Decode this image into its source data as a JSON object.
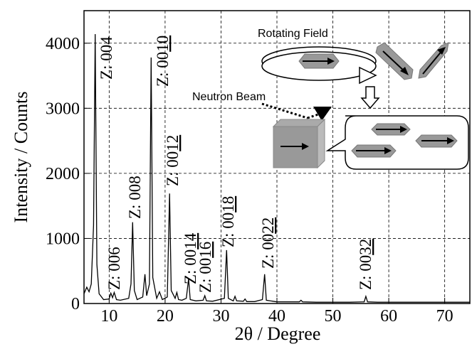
{
  "chart_data": {
    "type": "line",
    "xlabel": "2θ / Degree",
    "ylabel": "Intensity / Counts",
    "xlim": [
      5.5,
      74.5
    ],
    "ylim": [
      0,
      4500
    ],
    "xticks": [
      10,
      20,
      30,
      40,
      50,
      60,
      70
    ],
    "yticks": [
      0,
      1000,
      2000,
      3000,
      4000
    ],
    "grid": true,
    "x": [
      5.5,
      6.0,
      6.4,
      6.8,
      7.2,
      7.5,
      7.8,
      8.2,
      9,
      10.0,
      10.3,
      10.6,
      10.9,
      11.3,
      12,
      13.5,
      13.9,
      14.2,
      14.5,
      15,
      16.0,
      16.4,
      16.7,
      17.2,
      17.5,
      17.8,
      18.5,
      19,
      19.5,
      20.4,
      20.8,
      21.1,
      21.8,
      22.1,
      22.4,
      23,
      23.8,
      24.2,
      24.5,
      25.5,
      26.8,
      27.1,
      27.4,
      28.5,
      30.6,
      31.0,
      31.3,
      32.2,
      32.5,
      32.8,
      34,
      34.3,
      34.6,
      36,
      37.4,
      37.8,
      38.1,
      40,
      42,
      44,
      44.3,
      44.6,
      47,
      50,
      53,
      55.6,
      55.9,
      56.2,
      58,
      62,
      66,
      70,
      74.5
    ],
    "series": [
      {
        "color": "#000000",
        "values": [
          150,
          250,
          180,
          300,
          1200,
          4140,
          600,
          150,
          60,
          70,
          160,
          90,
          170,
          60,
          50,
          80,
          300,
          1250,
          200,
          60,
          100,
          450,
          120,
          300,
          3780,
          400,
          80,
          180,
          60,
          100,
          1690,
          200,
          80,
          170,
          60,
          50,
          80,
          380,
          60,
          40,
          50,
          120,
          40,
          35,
          80,
          820,
          80,
          40,
          110,
          40,
          35,
          70,
          30,
          30,
          60,
          450,
          50,
          25,
          25,
          25,
          50,
          25,
          20,
          20,
          20,
          25,
          110,
          25,
          20,
          20,
          20,
          20,
          20
        ]
      }
    ],
    "annotations": [
      "Z: 004",
      "Z: 006",
      "Z: 008",
      "Z: 0010",
      "Z: 0012",
      "Z: 0014",
      "Z: 0016",
      "Z: 0018",
      "Z: 0022",
      "Z: 0032"
    ],
    "inset": {
      "rotating_label": "Rotating Field",
      "beam_label": "Neutron Beam"
    }
  }
}
